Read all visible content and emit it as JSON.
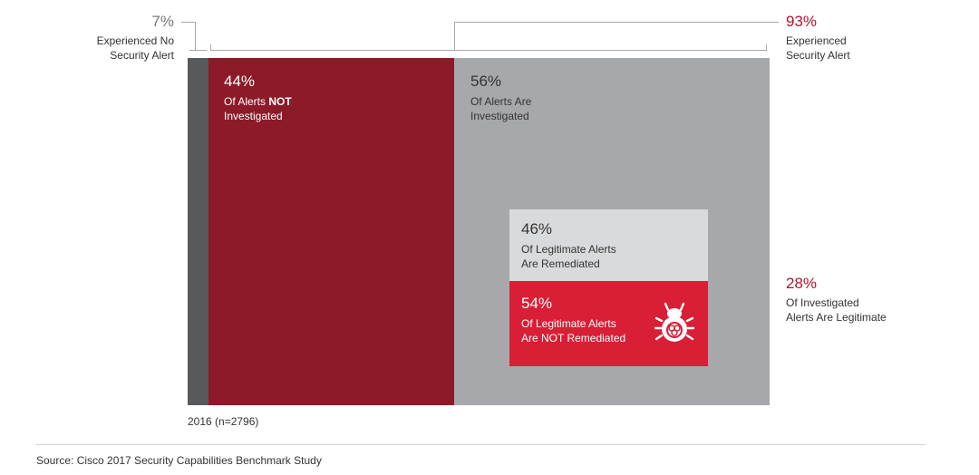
{
  "colors": {
    "no_alert": "#58595b",
    "not_investigated": "#8c1a29",
    "investigated": "#a7a8ab",
    "remediated": "#d9dadb",
    "not_remediated": "#d81f36",
    "accent_text": "#b5132b"
  },
  "chart_data": {
    "type": "bar",
    "year_label": "2016 (n=2796)",
    "segments": [
      {
        "value": "7%",
        "label_line1": "Experienced No",
        "label_line2": "Security Alert"
      },
      {
        "value": "93%",
        "label_line1": "Experienced",
        "label_line2": "Security Alert"
      }
    ],
    "alerts": {
      "not_investigated": {
        "value": "44%",
        "label_line1_pre": "Of Alerts ",
        "label_line1_bold": "NOT",
        "label_line2": "Investigated"
      },
      "investigated": {
        "value": "56%",
        "label_line1": "Of Alerts Are",
        "label_line2": "Investigated"
      }
    },
    "legitimate": {
      "value": "28%",
      "label_line1": "Of Investigated",
      "label_line2": "Alerts Are Legitimate"
    },
    "remediation": {
      "remediated": {
        "value": "46%",
        "label_line1": "Of Legitimate Alerts",
        "label_line2": "Are Remediated"
      },
      "not_remediated": {
        "value": "54%",
        "label_line1": "Of Legitimate Alerts",
        "label_line2": "Are NOT Remediated"
      }
    },
    "source": "Source: Cisco 2017 Security Capabilities Benchmark Study"
  },
  "icons": {
    "bug": "bug-biohazard-icon"
  }
}
